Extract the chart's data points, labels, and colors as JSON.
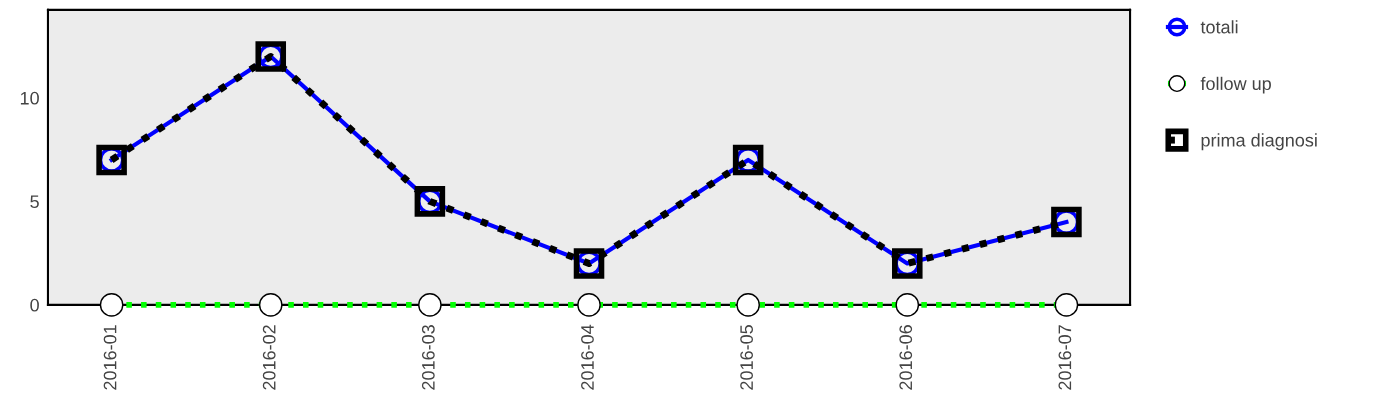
{
  "chart_data": {
    "type": "line",
    "categories": [
      "2016-01",
      "2016-02",
      "2016-03",
      "2016-04",
      "2016-05",
      "2016-06",
      "2016-07"
    ],
    "series": [
      {
        "name": "totali",
        "color": "#0000ff",
        "marker": "circle",
        "line_style": "solid",
        "values": [
          7,
          12,
          5,
          2,
          7,
          2,
          4
        ]
      },
      {
        "name": "follow up",
        "color": "#00ff00",
        "marker": "circle",
        "line_style": "dotted",
        "values": [
          0,
          0,
          0,
          0,
          0,
          0,
          0
        ]
      },
      {
        "name": "prima diagnosi",
        "color": "#000000",
        "marker": "square",
        "line_style": "dotted",
        "values": [
          7,
          12,
          5,
          2,
          7,
          2,
          4
        ]
      }
    ],
    "ylim": [
      0,
      14.25
    ],
    "yticks": [
      0,
      5,
      10
    ],
    "grid": false,
    "legend": "top right"
  }
}
